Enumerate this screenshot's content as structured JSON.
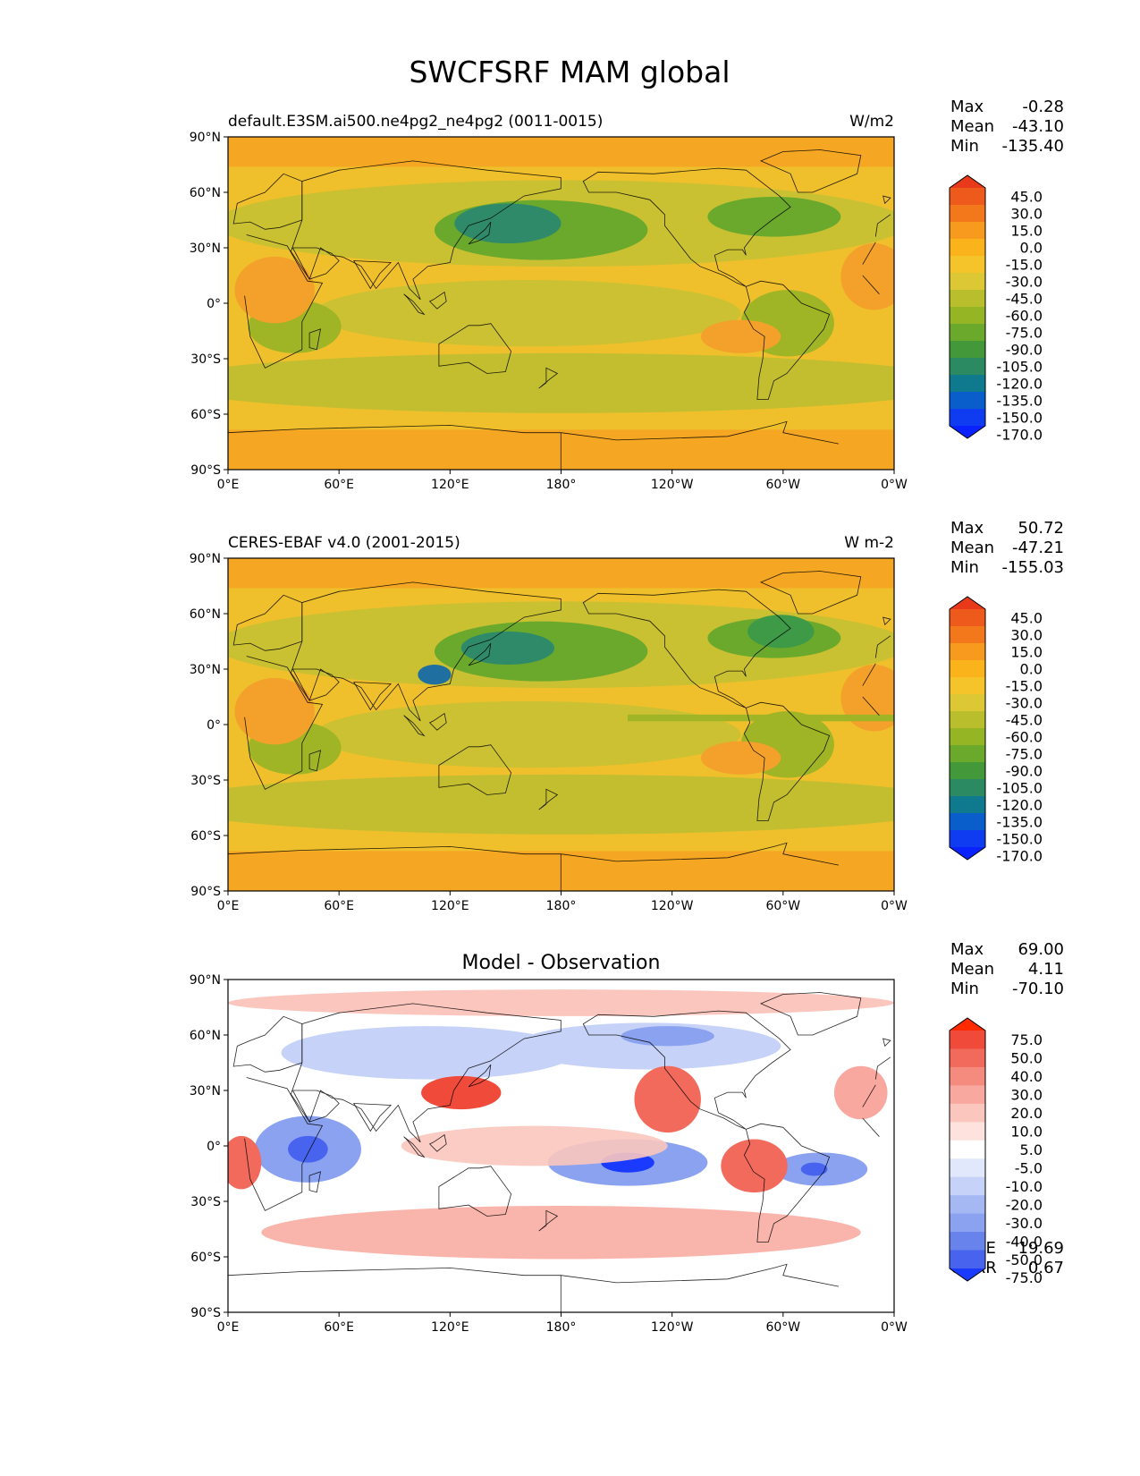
{
  "figure": {
    "title": "SWCFSRF MAM global"
  },
  "axes": {
    "lat_ticks": [
      "90°N",
      "60°N",
      "30°N",
      "0°",
      "30°S",
      "60°S",
      "90°S"
    ],
    "lon_ticks": [
      "0°E",
      "60°E",
      "120°E",
      "180°",
      "120°W",
      "60°W",
      "0°W"
    ]
  },
  "panels": [
    {
      "id": "model",
      "subtitle_left": "default.E3SM.ai500.ne4pg2_ne4pg2 (0011-0015)",
      "subtitle_right": "W/m2",
      "subtitle_center": "",
      "stats": [
        {
          "label": "Max",
          "value": "-0.28"
        },
        {
          "label": "Mean",
          "value": "-43.10"
        },
        {
          "label": "Min",
          "value": "-135.40"
        }
      ],
      "colorbar": {
        "labels": [
          "45.0",
          "30.0",
          "15.0",
          "0.0",
          "-15.0",
          "-30.0",
          "-45.0",
          "-60.0",
          "-75.0",
          "-90.0",
          "-105.0",
          "-120.0",
          "-135.0",
          "-150.0",
          "-170.0"
        ],
        "colors": [
          "#e83a1a",
          "#ee5a1c",
          "#f3781c",
          "#f79a1e",
          "#fbb31c",
          "#f5c32a",
          "#dcc734",
          "#b9bf2c",
          "#95b524",
          "#6aa92c",
          "#43993a",
          "#2c8a62",
          "#0f7a8e",
          "#0a5ecb",
          "#0f3cf0",
          "#0a22ff"
        ]
      },
      "chart_data": {
        "type": "heatmap",
        "field": "SWCFSRF",
        "units": "W/m2",
        "xlim": [
          0,
          360
        ],
        "ylim": [
          -90,
          90
        ],
        "summary": {
          "max": -0.28,
          "mean": -43.1,
          "min": -135.4
        }
      }
    },
    {
      "id": "obs",
      "subtitle_left": "CERES-EBAF v4.0 (2001-2015)",
      "subtitle_right": "W m-2",
      "subtitle_center": "",
      "stats": [
        {
          "label": "Max",
          "value": "50.72"
        },
        {
          "label": "Mean",
          "value": "-47.21"
        },
        {
          "label": "Min",
          "value": "-155.03"
        }
      ],
      "colorbar": {
        "labels": [
          "45.0",
          "30.0",
          "15.0",
          "0.0",
          "-15.0",
          "-30.0",
          "-45.0",
          "-60.0",
          "-75.0",
          "-90.0",
          "-105.0",
          "-120.0",
          "-135.0",
          "-150.0",
          "-170.0"
        ],
        "colors": [
          "#e83a1a",
          "#ee5a1c",
          "#f3781c",
          "#f79a1e",
          "#fbb31c",
          "#f5c32a",
          "#dcc734",
          "#b9bf2c",
          "#95b524",
          "#6aa92c",
          "#43993a",
          "#2c8a62",
          "#0f7a8e",
          "#0a5ecb",
          "#0f3cf0",
          "#0a22ff"
        ]
      },
      "chart_data": {
        "type": "heatmap",
        "field": "SWCFSRF",
        "units": "W m-2",
        "xlim": [
          0,
          360
        ],
        "ylim": [
          -90,
          90
        ],
        "summary": {
          "max": 50.72,
          "mean": -47.21,
          "min": -155.03
        }
      }
    },
    {
      "id": "diff",
      "subtitle_left": "",
      "subtitle_right": "",
      "subtitle_center": "Model - Observation",
      "stats": [
        {
          "label": "Max",
          "value": "69.00"
        },
        {
          "label": "Mean",
          "value": "4.11"
        },
        {
          "label": "Min",
          "value": "-70.10"
        }
      ],
      "bottom_stats": [
        {
          "label": "RMSE",
          "value": "19.69"
        },
        {
          "label": "CORR",
          "value": "0.67"
        }
      ],
      "colorbar": {
        "labels": [
          "75.0",
          "50.0",
          "40.0",
          "30.0",
          "20.0",
          "10.0",
          "5.0",
          "-5.0",
          "-10.0",
          "-20.0",
          "-30.0",
          "-40.0",
          "-50.0",
          "-75.0"
        ],
        "colors": [
          "#ff2a00",
          "#f04a3a",
          "#f26a5c",
          "#f58a7e",
          "#f8a89e",
          "#fbc6be",
          "#fde2dd",
          "#ffffff",
          "#e2e8fc",
          "#c6d2f8",
          "#a6b8f4",
          "#8aa2f0",
          "#6884ec",
          "#4864ee",
          "#1a3aff"
        ]
      },
      "chart_data": {
        "type": "heatmap",
        "field": "SWCFSRF difference",
        "xlim": [
          0,
          360
        ],
        "ylim": [
          -90,
          90
        ],
        "summary": {
          "max": 69.0,
          "mean": 4.11,
          "min": -70.1,
          "rmse": 19.69,
          "corr": 0.67
        }
      }
    }
  ]
}
